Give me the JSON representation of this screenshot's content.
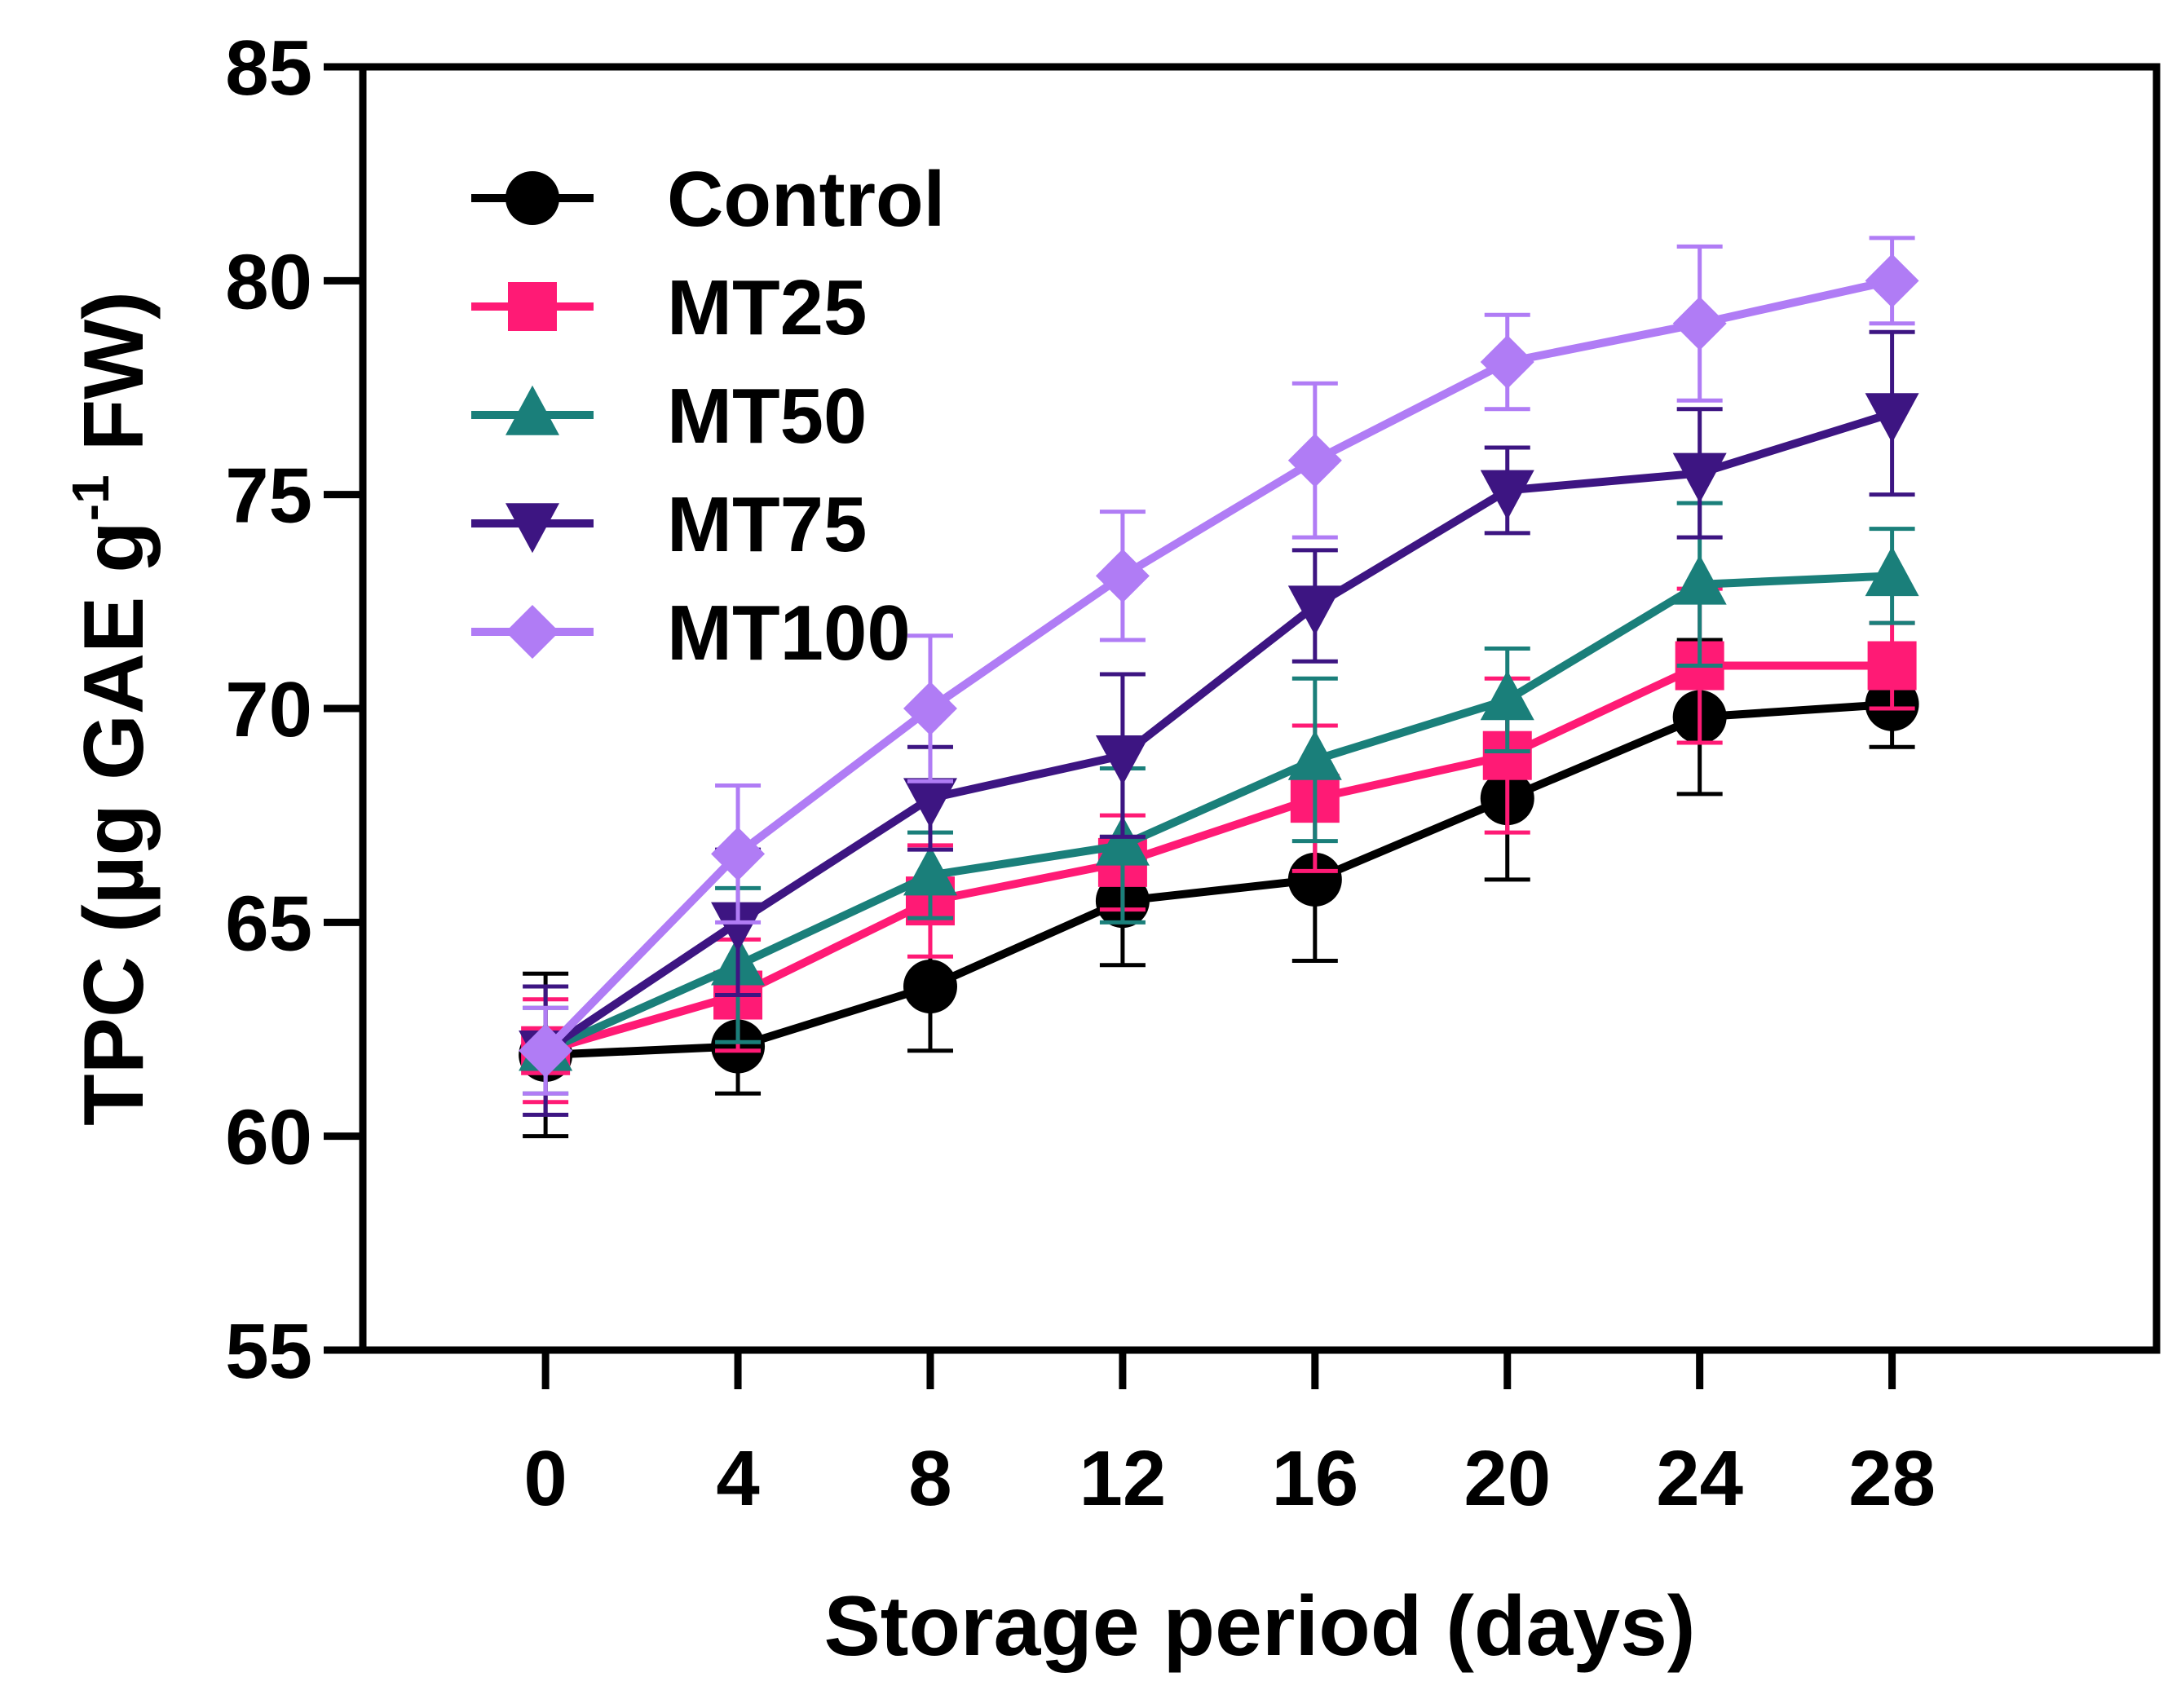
{
  "chart_data": {
    "type": "line",
    "title": "",
    "xlabel": "Storage period (days)",
    "ylabel_parts": [
      "TPC (µg GAE g",
      "-1",
      " FW)"
    ],
    "x": [
      0,
      4,
      8,
      12,
      16,
      20,
      24,
      28
    ],
    "xticks": [
      "0",
      "4",
      "8",
      "12",
      "16",
      "20",
      "24",
      "28"
    ],
    "xlim": [
      -3.8,
      33.5
    ],
    "yticks": [
      "55",
      "60",
      "65",
      "70",
      "75",
      "80",
      "85"
    ],
    "ytick_values": [
      55,
      60,
      65,
      70,
      75,
      80,
      85
    ],
    "ylim": [
      55,
      85
    ],
    "grid": false,
    "legend_position": "top-left",
    "series": [
      {
        "name": "Control",
        "color": "#000000",
        "marker": "circle",
        "values": [
          61.9,
          62.1,
          63.5,
          65.5,
          66.0,
          67.9,
          69.8,
          70.1
        ],
        "errors": [
          1.9,
          1.1,
          1.5,
          1.5,
          1.9,
          1.9,
          1.8,
          1.0
        ]
      },
      {
        "name": "MT25",
        "color": "#ff1a75",
        "marker": "square",
        "values": [
          62.0,
          63.3,
          65.5,
          66.4,
          67.9,
          68.9,
          71.0,
          71.0
        ],
        "errors": [
          1.2,
          1.3,
          1.3,
          1.1,
          1.7,
          1.8,
          1.8,
          1.0
        ]
      },
      {
        "name": "MT50",
        "color": "#1a7f7a",
        "marker": "triangle-up",
        "values": [
          62.0,
          64.0,
          66.1,
          66.8,
          68.8,
          70.2,
          72.9,
          73.1
        ],
        "errors": [
          1.0,
          1.8,
          1.0,
          1.8,
          1.9,
          1.2,
          1.9,
          1.1
        ]
      },
      {
        "name": "MT75",
        "color": "#3d1582",
        "marker": "triangle-down",
        "values": [
          62.0,
          65.0,
          67.9,
          68.9,
          72.4,
          75.1,
          75.5,
          76.9
        ],
        "errors": [
          1.5,
          1.7,
          1.2,
          1.9,
          1.3,
          1.0,
          1.5,
          1.9
        ]
      },
      {
        "name": "MT100",
        "color": "#b07cf5",
        "marker": "diamond",
        "values": [
          62.0,
          66.6,
          70.0,
          73.1,
          75.8,
          78.1,
          79.0,
          80.0
        ],
        "errors": [
          1.0,
          1.6,
          1.7,
          1.5,
          1.8,
          1.1,
          1.8,
          1.0
        ]
      }
    ]
  }
}
